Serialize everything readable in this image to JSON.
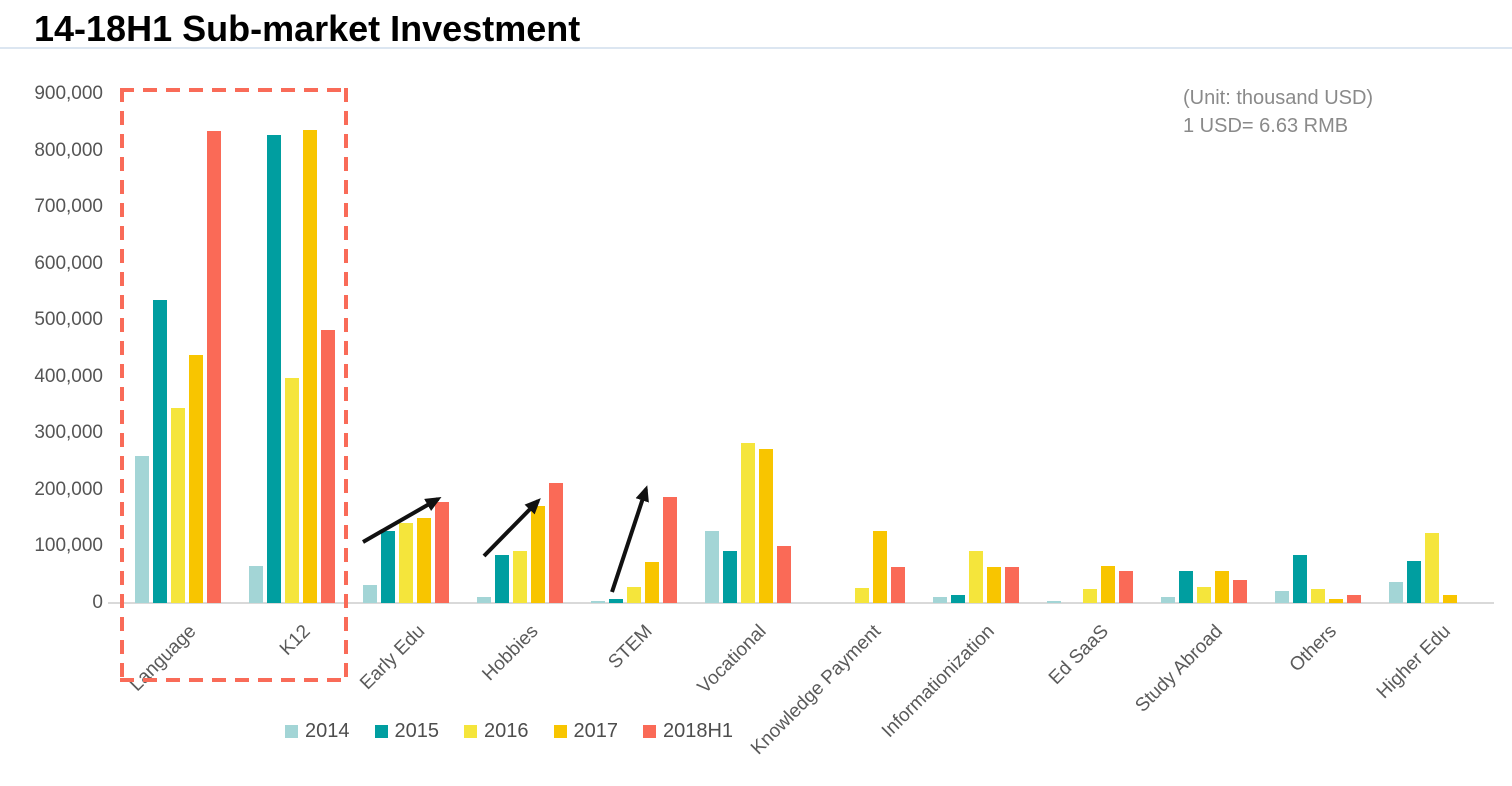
{
  "title": "14-18H1 Sub-market Investment",
  "unit_note": {
    "line1": "(Unit: thousand USD)",
    "line2": "1 USD= 6.63 RMB"
  },
  "chart_data": {
    "type": "bar",
    "title": "14-18H1 Sub-market Investment",
    "unit": "thousand USD",
    "xlabel": "",
    "ylabel": "",
    "ylim": [
      0,
      900000
    ],
    "grid": false,
    "legend_position": "bottom",
    "y_tick_labels": [
      "0",
      "100,000",
      "200,000",
      "300,000",
      "400,000",
      "500,000",
      "600,000",
      "700,000",
      "800,000",
      "900,000"
    ],
    "y_tick_values": [
      0,
      100000,
      200000,
      300000,
      400000,
      500000,
      600000,
      700000,
      800000,
      900000
    ],
    "categories": [
      "Language",
      "K12",
      "Early Edu",
      "Hobbies",
      "STEM",
      "Vocational",
      "Knowledge Payment",
      "Informationization",
      "Ed SaaS",
      "Study Abroad",
      "Others",
      "Higher Edu"
    ],
    "series": [
      {
        "name": "2014",
        "color": "#a3d5d6",
        "values": [
          260000,
          65000,
          32000,
          11000,
          3000,
          127000,
          0,
          10000,
          4000,
          10000,
          21000,
          38000
        ]
      },
      {
        "name": "2015",
        "color": "#009ea0",
        "values": [
          535000,
          828000,
          128000,
          85000,
          7000,
          92000,
          0,
          14000,
          0,
          57000,
          84000,
          75000
        ]
      },
      {
        "name": "2016",
        "color": "#f5e53b",
        "values": [
          345000,
          397000,
          142000,
          92000,
          28000,
          283000,
          27000,
          92000,
          24000,
          29000,
          25000,
          124000
        ]
      },
      {
        "name": "2017",
        "color": "#f8c500",
        "values": [
          438000,
          836000,
          150000,
          172000,
          73000,
          272000,
          127000,
          63000,
          66000,
          57000,
          7000,
          14000
        ]
      },
      {
        "name": "2018H1",
        "color": "#fa6a57",
        "values": [
          835000,
          482000,
          178000,
          213000,
          188000,
          100000,
          64000,
          64000,
          57000,
          41000,
          14000,
          0
        ]
      }
    ],
    "annotations": [
      {
        "type": "growth-arrow",
        "category": "Early Edu"
      },
      {
        "type": "growth-arrow",
        "category": "Hobbies"
      },
      {
        "type": "growth-arrow",
        "category": "STEM"
      },
      {
        "type": "highlight-box",
        "categories": [
          "Language",
          "K12"
        ],
        "style": "red-dashed"
      }
    ]
  }
}
